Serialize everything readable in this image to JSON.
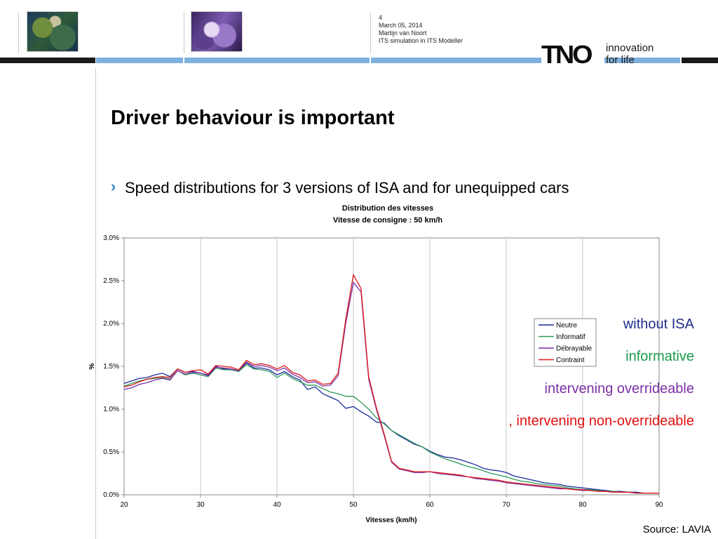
{
  "header": {
    "page_number": "4",
    "date": "March 05, 2014",
    "author": "Martijn van Noort",
    "subject": "ITS simulation in ITS Modeller",
    "logo_main": "TNO",
    "logo_tagline_1": "innovation",
    "logo_tagline_2": "for life"
  },
  "slide": {
    "title": "Driver behaviour is important",
    "bullet_mark": "›",
    "bullet": "Speed distributions for 3 versions of ISA and for unequipped cars"
  },
  "annotations": [
    {
      "text": "without ISA",
      "color": "#1f2e8a"
    },
    {
      "text": "informative",
      "color": "#1a9a4a"
    },
    {
      "text": "intervening overrideable",
      "color": "#7b2fa6"
    },
    {
      "text": ", intervening non-overrideable",
      "color": "#e01010"
    }
  ],
  "source": "Source: LAVIA",
  "chart_data": {
    "type": "line",
    "title": "Distribution des vitesses",
    "subtitle": "Vitesse de consigne : 50 km/h",
    "xlabel": "Vitesses (km/h)",
    "ylabel": "%",
    "xlim": [
      20,
      90
    ],
    "ylim": [
      0,
      3.0
    ],
    "xticks": [
      20,
      30,
      40,
      50,
      60,
      70,
      80,
      90
    ],
    "yticks": [
      0,
      0.5,
      1.0,
      1.5,
      2.0,
      2.5,
      3.0
    ],
    "ytick_labels": [
      "0.0%",
      "0.5%",
      "1.0%",
      "1.5%",
      "2.0%",
      "2.5%",
      "3.0%"
    ],
    "grid": "vertical",
    "legend_position": "right",
    "x": [
      20,
      21,
      22,
      23,
      24,
      25,
      26,
      27,
      28,
      29,
      30,
      31,
      32,
      33,
      34,
      35,
      36,
      37,
      38,
      39,
      40,
      41,
      42,
      43,
      44,
      45,
      46,
      47,
      48,
      49,
      50,
      51,
      52,
      53,
      54,
      55,
      56,
      57,
      58,
      59,
      60,
      61,
      62,
      63,
      64,
      65,
      66,
      67,
      68,
      69,
      70,
      71,
      72,
      73,
      74,
      75,
      76,
      77,
      78,
      79,
      80,
      81,
      82,
      83,
      84,
      85,
      86,
      87,
      88,
      89,
      90
    ],
    "series": [
      {
        "name": "Neutre",
        "color": "#1a2a9c",
        "values": [
          1.3,
          1.33,
          1.36,
          1.37,
          1.4,
          1.42,
          1.38,
          1.47,
          1.43,
          1.44,
          1.42,
          1.4,
          1.5,
          1.47,
          1.46,
          1.44,
          1.54,
          1.48,
          1.48,
          1.46,
          1.4,
          1.44,
          1.38,
          1.34,
          1.23,
          1.26,
          1.18,
          1.14,
          1.1,
          1.01,
          1.03,
          0.97,
          0.92,
          0.85,
          0.84,
          0.75,
          0.69,
          0.64,
          0.59,
          0.56,
          0.51,
          0.47,
          0.44,
          0.43,
          0.41,
          0.38,
          0.35,
          0.31,
          0.29,
          0.28,
          0.26,
          0.22,
          0.2,
          0.18,
          0.16,
          0.14,
          0.13,
          0.12,
          0.1,
          0.09,
          0.08,
          0.07,
          0.06,
          0.05,
          0.04,
          0.04,
          0.03,
          0.03,
          0.02,
          0.02,
          0.02
        ]
      },
      {
        "name": "Informatif",
        "color": "#2e9a5a",
        "values": [
          1.27,
          1.3,
          1.33,
          1.35,
          1.36,
          1.37,
          1.35,
          1.45,
          1.4,
          1.42,
          1.4,
          1.38,
          1.48,
          1.46,
          1.46,
          1.44,
          1.52,
          1.47,
          1.46,
          1.44,
          1.37,
          1.42,
          1.36,
          1.32,
          1.28,
          1.28,
          1.24,
          1.2,
          1.18,
          1.15,
          1.15,
          1.08,
          1.0,
          0.9,
          0.83,
          0.75,
          0.7,
          0.65,
          0.6,
          0.56,
          0.5,
          0.46,
          0.42,
          0.39,
          0.36,
          0.33,
          0.31,
          0.28,
          0.25,
          0.23,
          0.21,
          0.18,
          0.16,
          0.15,
          0.13,
          0.12,
          0.11,
          0.1,
          0.08,
          0.07,
          0.06,
          0.06,
          0.05,
          0.04,
          0.04,
          0.03,
          0.03,
          0.02,
          0.02,
          0.02,
          0.02
        ]
      },
      {
        "name": "Débrayable",
        "color": "#7b2fa6",
        "values": [
          1.23,
          1.25,
          1.29,
          1.31,
          1.34,
          1.36,
          1.34,
          1.45,
          1.41,
          1.43,
          1.42,
          1.39,
          1.49,
          1.48,
          1.47,
          1.45,
          1.55,
          1.5,
          1.51,
          1.49,
          1.45,
          1.48,
          1.41,
          1.37,
          1.31,
          1.32,
          1.27,
          1.28,
          1.39,
          2.0,
          2.48,
          2.37,
          1.35,
          1.0,
          0.7,
          0.38,
          0.3,
          0.28,
          0.26,
          0.26,
          0.27,
          0.25,
          0.24,
          0.23,
          0.22,
          0.21,
          0.19,
          0.18,
          0.17,
          0.16,
          0.14,
          0.13,
          0.12,
          0.11,
          0.1,
          0.09,
          0.08,
          0.07,
          0.07,
          0.06,
          0.05,
          0.05,
          0.04,
          0.04,
          0.03,
          0.03,
          0.03,
          0.02,
          0.02,
          0.02,
          0.02
        ]
      },
      {
        "name": "Contraint",
        "color": "#e01818",
        "values": [
          1.26,
          1.28,
          1.32,
          1.35,
          1.37,
          1.38,
          1.37,
          1.47,
          1.43,
          1.45,
          1.46,
          1.41,
          1.51,
          1.5,
          1.49,
          1.46,
          1.57,
          1.52,
          1.53,
          1.51,
          1.47,
          1.51,
          1.43,
          1.4,
          1.33,
          1.34,
          1.29,
          1.3,
          1.42,
          2.05,
          2.57,
          2.41,
          1.38,
          1.02,
          0.72,
          0.39,
          0.31,
          0.29,
          0.27,
          0.27,
          0.27,
          0.26,
          0.25,
          0.24,
          0.23,
          0.21,
          0.2,
          0.19,
          0.18,
          0.17,
          0.15,
          0.14,
          0.13,
          0.12,
          0.11,
          0.1,
          0.09,
          0.08,
          0.07,
          0.06,
          0.06,
          0.05,
          0.04,
          0.04,
          0.03,
          0.03,
          0.03,
          0.02,
          0.02,
          0.02,
          0.02
        ]
      }
    ]
  }
}
